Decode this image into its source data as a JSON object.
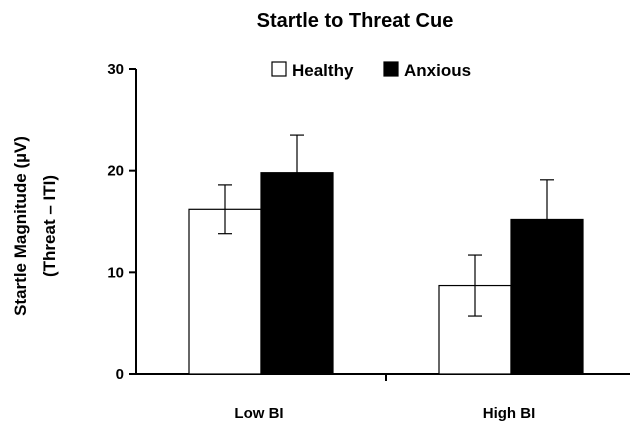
{
  "chart_data": {
    "type": "bar",
    "title": "Startle to Threat Cue",
    "ylabel_line1": "Startle Magnitude (µV)",
    "ylabel_line2": "(Threat – ITI)",
    "xlabel": "",
    "categories": [
      "Low BI",
      "High BI"
    ],
    "ylim": [
      0,
      30
    ],
    "yticks": [
      0,
      10,
      20,
      30
    ],
    "legend_position": "top",
    "grid": false,
    "series": [
      {
        "name": "Healthy",
        "values": [
          16.2,
          8.7
        ],
        "errors": [
          2.4,
          3.0
        ],
        "color": "#ffffff"
      },
      {
        "name": "Anxious",
        "values": [
          19.8,
          15.2
        ],
        "errors": [
          3.7,
          3.9
        ],
        "color": "#000000"
      }
    ]
  }
}
